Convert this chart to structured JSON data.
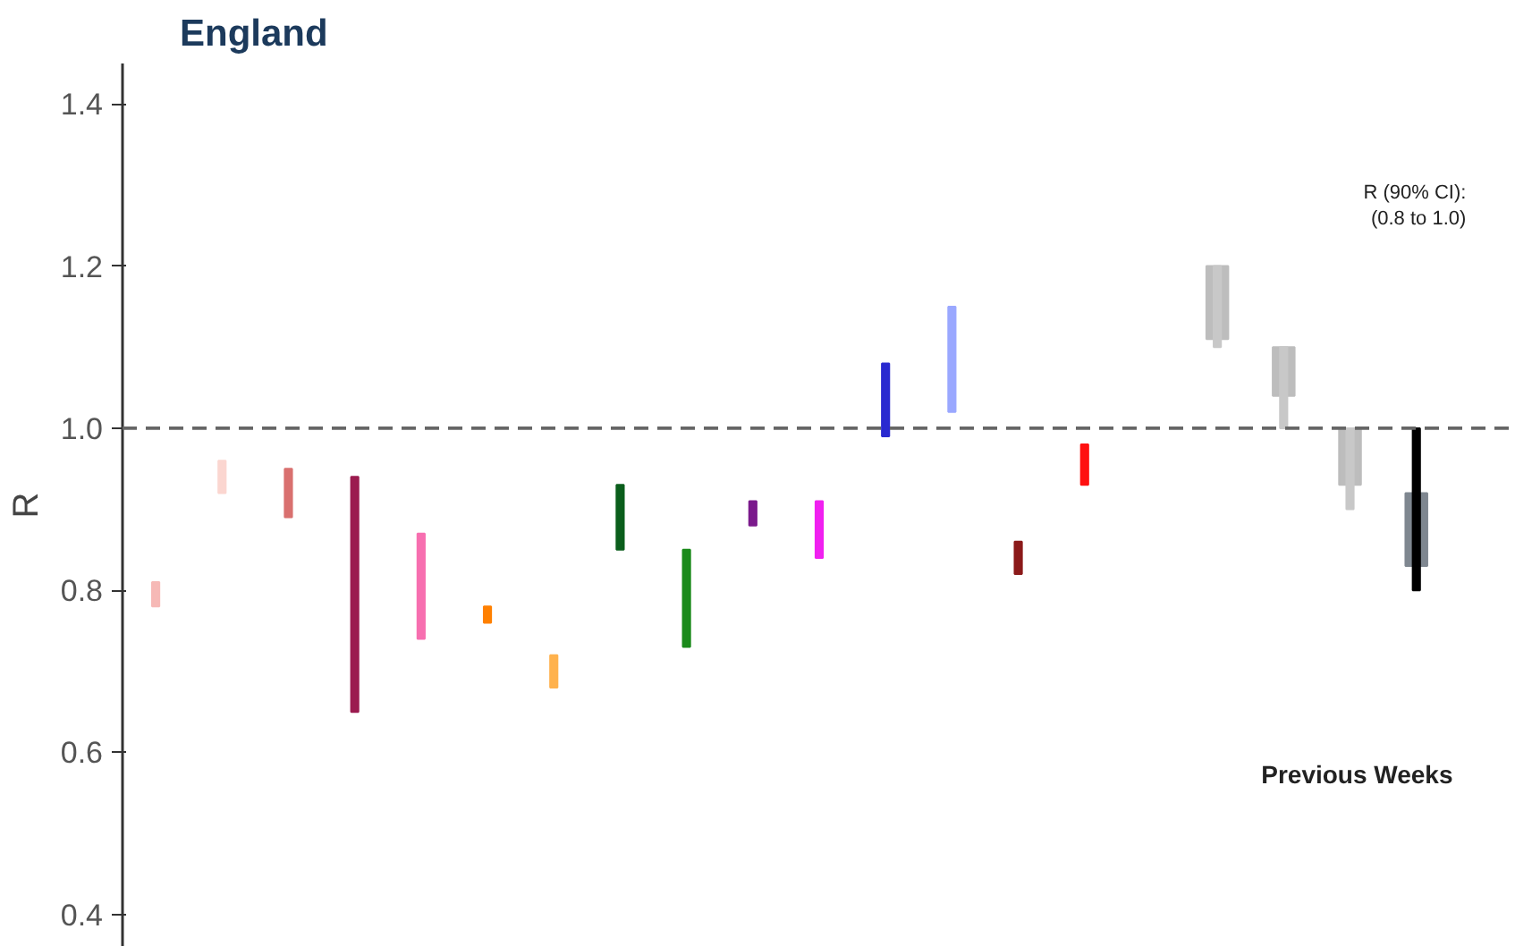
{
  "chart_data": {
    "type": "bar",
    "title": "England",
    "ylabel": "R",
    "categories": [
      null,
      null,
      null,
      null,
      null,
      null,
      null,
      null,
      null,
      null,
      null,
      null,
      null,
      null,
      null,
      null,
      null,
      null,
      null,
      null,
      null
    ],
    "series": [
      {
        "colors": [
          "#f6b9b6",
          "#fbd6d0",
          "#d9706f",
          "#9b1b4f",
          "#f76fb0",
          "#ff8000",
          "#ffb24d",
          "#0b5e1c",
          "#1a8a1a",
          "#7b1a8c",
          "#f020f0",
          "#2a2ad0",
          "#9aa8ff",
          "#8b1a1a",
          "#ff1010",
          null,
          "#c8c8c8",
          "#c8c8c8",
          "#c8c8c8",
          "#000000",
          null
        ],
        "base": [
          0.78,
          0.92,
          0.89,
          0.65,
          0.74,
          0.76,
          0.68,
          0.85,
          0.73,
          0.88,
          0.84,
          0.99,
          1.02,
          0.82,
          0.93,
          null,
          1.1,
          1.0,
          0.9,
          0.8,
          null
        ],
        "values": [
          0.03,
          0.04,
          0.06,
          0.29,
          0.13,
          0.02,
          0.04,
          0.08,
          0.12,
          0.03,
          0.07,
          0.09,
          0.13,
          0.04,
          0.05,
          null,
          0.1,
          0.1,
          0.1,
          0.2,
          null
        ]
      },
      {
        "colors": [
          null,
          null,
          null,
          null,
          null,
          null,
          null,
          null,
          null,
          null,
          null,
          null,
          null,
          null,
          null,
          null,
          "#bdbdbd",
          "#bdbdbd",
          "#bdbdbd",
          "#7f8790",
          null
        ],
        "base": [
          null,
          null,
          null,
          null,
          null,
          null,
          null,
          null,
          null,
          null,
          null,
          null,
          null,
          null,
          null,
          null,
          1.11,
          1.04,
          0.93,
          0.83,
          null
        ],
        "values": [
          null,
          null,
          null,
          null,
          null,
          null,
          null,
          null,
          null,
          null,
          null,
          null,
          null,
          null,
          null,
          null,
          0.09,
          0.06,
          0.07,
          0.09,
          null
        ]
      }
    ],
    "ylim": [
      0.36,
      1.45
    ],
    "yticks": [
      0.4,
      0.6,
      0.8,
      {
        "value": 1.0,
        "label": "1.0"
      },
      1.2,
      1.4
    ],
    "ref_lines": [
      {
        "axis": "y",
        "value": 1.0,
        "color": "#666666",
        "line_style": "dashed"
      }
    ],
    "annotations": [
      "R (90% CI):\n(0.8 to 1.0)",
      "Previous Weeks"
    ],
    "grid": false,
    "tick_labels": "y"
  }
}
